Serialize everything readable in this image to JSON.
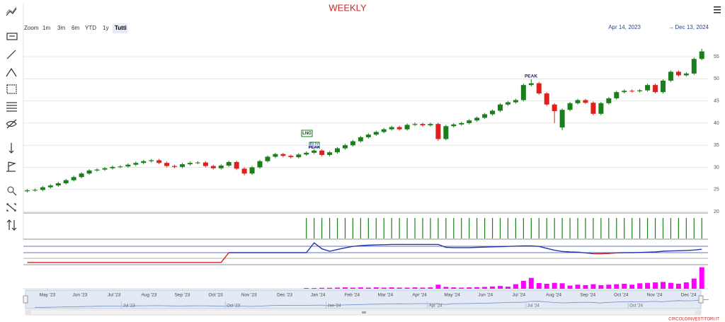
{
  "header": {
    "title": "WEEKLY"
  },
  "range_selector": {
    "label": "Zoom",
    "buttons": [
      "1m",
      "3m",
      "6m",
      "YTD",
      "1y",
      "Tutti"
    ],
    "selected": 5,
    "from": "Apr 14, 2023",
    "separator": "→",
    "to": "Dec 13, 2024"
  },
  "footer": "CIRCOLOINVESTITORI.IT",
  "chart_data": [
    {
      "type": "candlestick",
      "up_color": "#1a7f1a",
      "down_color": "#e0201c",
      "open": [
        24.6,
        24.8,
        24.9,
        25.5,
        25.9,
        26.4,
        27.1,
        27.8,
        28.6,
        29.3,
        29.5,
        29.8,
        30.1,
        30.2,
        30.6,
        31.0,
        31.4,
        31.6,
        31.0,
        30.3,
        30.1,
        30.7,
        31.0,
        31.1,
        30.3,
        29.8,
        30.4,
        31.2,
        29.7,
        28.6,
        30.0,
        31.4,
        32.4,
        33.0,
        32.6,
        32.3,
        32.9,
        33.3,
        33.8,
        32.8,
        33.4,
        34.3,
        35.0,
        35.9,
        36.8,
        37.4,
        38.0,
        38.6,
        39.1,
        38.6,
        39.6,
        39.8,
        39.5,
        39.8,
        36.4,
        39.3,
        39.7,
        40.0,
        40.6,
        41.2,
        42.0,
        42.8,
        44.2,
        44.7,
        45.2,
        48.6,
        49.0,
        46.7,
        44.2,
        39.0,
        43.0,
        44.5,
        45.2,
        44.6,
        42.1,
        44.5,
        45.6,
        47.0,
        47.3,
        47.2,
        47.4,
        48.6,
        47.0,
        49.6,
        51.6,
        50.8,
        51.2,
        54.5
      ],
      "high": [
        25.1,
        25.2,
        25.8,
        26.2,
        26.7,
        27.4,
        28.1,
        28.9,
        29.6,
        29.8,
        30.1,
        30.4,
        30.5,
        30.9,
        31.3,
        31.7,
        31.9,
        31.9,
        31.3,
        30.6,
        31.0,
        31.3,
        31.4,
        31.4,
        30.6,
        30.7,
        31.5,
        31.5,
        30.0,
        30.3,
        31.7,
        32.7,
        33.3,
        33.3,
        32.9,
        33.2,
        33.6,
        34.1,
        34.1,
        33.7,
        34.6,
        35.3,
        36.2,
        37.1,
        37.7,
        38.3,
        38.9,
        39.4,
        39.4,
        39.9,
        40.1,
        40.1,
        40.1,
        40.1,
        39.6,
        40.0,
        40.3,
        40.9,
        41.5,
        42.3,
        43.1,
        44.5,
        45.0,
        45.5,
        48.9,
        49.9,
        49.3,
        47.0,
        44.5,
        43.3,
        44.8,
        45.5,
        45.5,
        44.9,
        44.8,
        45.9,
        47.3,
        47.6,
        47.6,
        47.7,
        48.9,
        48.9,
        49.9,
        51.9,
        51.9,
        51.5,
        54.8,
        56.8
      ],
      "low": [
        24.3,
        24.5,
        24.6,
        25.2,
        25.6,
        26.1,
        26.8,
        27.5,
        28.3,
        29.0,
        29.2,
        29.5,
        29.8,
        29.9,
        30.3,
        30.7,
        31.1,
        30.7,
        30.0,
        29.8,
        29.8,
        30.4,
        30.7,
        30.0,
        29.5,
        29.5,
        30.1,
        29.4,
        28.2,
        28.3,
        29.7,
        31.1,
        32.1,
        32.3,
        32.0,
        32.0,
        32.6,
        33.0,
        32.5,
        32.5,
        33.1,
        34.0,
        34.7,
        35.6,
        36.5,
        37.1,
        37.7,
        38.3,
        38.3,
        38.3,
        39.3,
        39.2,
        39.2,
        36.0,
        36.1,
        39.0,
        39.4,
        39.7,
        40.3,
        40.9,
        41.7,
        42.5,
        43.9,
        44.4,
        44.9,
        48.3,
        46.4,
        43.9,
        40.0,
        38.4,
        42.7,
        44.2,
        44.3,
        41.8,
        41.8,
        44.2,
        45.3,
        46.7,
        46.9,
        46.9,
        47.1,
        46.7,
        46.7,
        49.3,
        50.5,
        50.5,
        50.9,
        54.2
      ],
      "close": [
        24.8,
        24.9,
        25.5,
        25.9,
        26.4,
        27.1,
        27.8,
        28.6,
        29.3,
        29.5,
        29.8,
        30.1,
        30.2,
        30.6,
        31.0,
        31.4,
        31.6,
        31.0,
        30.3,
        30.1,
        30.7,
        31.0,
        31.1,
        30.3,
        29.8,
        30.4,
        31.2,
        29.7,
        28.6,
        30.0,
        31.4,
        32.4,
        33.0,
        32.6,
        32.3,
        32.9,
        33.3,
        33.8,
        32.8,
        33.4,
        34.3,
        35.0,
        35.9,
        36.8,
        37.4,
        38.0,
        38.6,
        39.1,
        38.6,
        39.6,
        39.8,
        39.5,
        39.8,
        36.4,
        39.3,
        39.7,
        40.0,
        40.6,
        41.2,
        42.0,
        42.8,
        44.2,
        44.7,
        45.2,
        48.6,
        49.0,
        46.7,
        44.2,
        42.7,
        43.0,
        44.5,
        45.2,
        44.6,
        42.1,
        44.5,
        45.6,
        47.0,
        47.3,
        47.2,
        47.4,
        48.6,
        47.0,
        49.6,
        51.6,
        50.8,
        51.2,
        54.5,
        56.2
      ],
      "xlim": [
        -0.5,
        87.8
      ],
      "ylim": [
        20,
        59.5
      ],
      "yticks": [
        20,
        25,
        30,
        35,
        40,
        45,
        50,
        55
      ],
      "grid": true,
      "xticks": [
        {
          "value": 2.6,
          "label": "May '23"
        },
        {
          "value": 6.8,
          "label": "Jun '23"
        },
        {
          "value": 11.2,
          "label": "Jul '23"
        },
        {
          "value": 15.7,
          "label": "Aug '23"
        },
        {
          "value": 20.0,
          "label": "Sep '23"
        },
        {
          "value": 24.3,
          "label": "Oct '23"
        },
        {
          "value": 28.6,
          "label": "Nov '23"
        },
        {
          "value": 33.2,
          "label": "Dec '23"
        },
        {
          "value": 37.5,
          "label": "Jan '24"
        },
        {
          "value": 41.9,
          "label": "Feb '24"
        },
        {
          "value": 46.2,
          "label": "Mar '24"
        },
        {
          "value": 50.6,
          "label": "Apr '24"
        },
        {
          "value": 54.8,
          "label": "May '24"
        },
        {
          "value": 59.1,
          "label": "Jun '24"
        },
        {
          "value": 63.4,
          "label": "Jul '24"
        },
        {
          "value": 67.9,
          "label": "Aug '24"
        },
        {
          "value": 72.3,
          "label": "Sep '24"
        },
        {
          "value": 76.6,
          "label": "Oct '24"
        },
        {
          "value": 80.9,
          "label": "Nov '24"
        },
        {
          "value": 85.3,
          "label": "Dec '24"
        }
      ],
      "annotations": [
        "LNG",
        "BUY",
        "PEAK",
        "PEAK"
      ]
    },
    {
      "type": "signal",
      "color": "#1a7f1a",
      "ylim": [
        0,
        1
      ],
      "values": [
        0,
        0,
        0,
        0,
        0,
        0,
        0,
        0,
        0,
        0,
        0,
        0,
        0,
        0,
        0,
        0,
        0,
        0,
        0,
        0,
        0,
        0,
        0,
        0,
        0,
        0,
        0,
        0,
        0,
        0,
        0,
        0,
        0,
        0,
        0,
        0,
        1,
        1,
        1,
        1,
        1,
        1,
        1,
        1,
        1,
        1,
        1,
        1,
        1,
        1,
        1,
        1,
        1,
        1,
        1,
        1,
        1,
        1,
        1,
        1,
        1,
        1,
        1,
        1,
        1,
        1,
        1,
        1,
        1,
        1,
        1,
        1,
        1,
        1,
        1,
        1,
        1,
        1,
        1,
        1,
        1,
        1,
        1,
        1,
        1,
        1,
        1,
        1
      ]
    },
    {
      "type": "line",
      "ylim": [
        0,
        100
      ],
      "series": [
        {
          "color": "#2536a8",
          "values": [
            null,
            null,
            null,
            null,
            null,
            null,
            null,
            null,
            null,
            null,
            null,
            null,
            null,
            null,
            null,
            null,
            null,
            null,
            null,
            null,
            null,
            null,
            null,
            null,
            null,
            null,
            50,
            50,
            50,
            50,
            50,
            50,
            50,
            50,
            50,
            50,
            50,
            91,
            66,
            56,
            63,
            70,
            76,
            79,
            81,
            82,
            83,
            84,
            84,
            84,
            84,
            84,
            84,
            84,
            72,
            71,
            71,
            71,
            72,
            73,
            74,
            75,
            76,
            77,
            78,
            78,
            76,
            68,
            60,
            55,
            53,
            52,
            49,
            46,
            46,
            47,
            49,
            50,
            50,
            51,
            52,
            53,
            56,
            57,
            58,
            59,
            61,
            64
          ]
        },
        {
          "color": "#d42020",
          "values": [
            9,
            9,
            9,
            9,
            9,
            9,
            9,
            9,
            9,
            9,
            9,
            9,
            9,
            9,
            9,
            9,
            9,
            9,
            9,
            9,
            9,
            9,
            9,
            9,
            9,
            9,
            50,
            null,
            null,
            null,
            null,
            null,
            null,
            null,
            null,
            null,
            null,
            null,
            null,
            null,
            null,
            null,
            null,
            null,
            null,
            null,
            null,
            null,
            null,
            null,
            null,
            null,
            null,
            null,
            null,
            null,
            null,
            null,
            null,
            null,
            null,
            null,
            null,
            null,
            null,
            null,
            null,
            null,
            null,
            null,
            null,
            null,
            null,
            46,
            46,
            47,
            49,
            null,
            null,
            null,
            null,
            null,
            null,
            null,
            null,
            null,
            null,
            null
          ]
        }
      ]
    },
    {
      "type": "bar",
      "color": "#ff00ff",
      "ylim": [
        0,
        100
      ],
      "values": [
        0,
        0,
        0,
        0,
        0,
        0,
        0,
        0,
        0,
        0,
        0,
        0,
        0,
        0,
        0,
        0,
        0,
        0,
        0,
        0,
        0,
        0,
        0,
        0,
        0,
        0,
        0,
        0,
        0,
        0,
        0,
        0,
        0,
        0,
        0,
        0,
        3,
        3,
        4,
        4,
        5,
        6,
        5,
        6,
        5,
        6,
        5,
        6,
        5,
        5,
        6,
        5,
        6,
        18,
        8,
        6,
        5,
        6,
        7,
        8,
        10,
        12,
        9,
        20,
        35,
        48,
        25,
        22,
        26,
        24,
        14,
        18,
        16,
        20,
        16,
        18,
        20,
        22,
        18,
        24,
        26,
        28,
        30,
        26,
        22,
        28,
        45,
        95
      ]
    },
    {
      "type": "navigator",
      "xlim": [
        -1.2,
        86.0
      ],
      "xticks": [
        {
          "value": 11.2,
          "label": "Jul '23"
        },
        {
          "value": 24.6,
          "label": "Oct '23"
        },
        {
          "value": 37.6,
          "label": "Jan '24"
        },
        {
          "value": 50.7,
          "label": "Apr '24"
        },
        {
          "value": 63.4,
          "label": "Jul '24"
        },
        {
          "value": 76.6,
          "label": "Oct '24"
        }
      ]
    }
  ]
}
